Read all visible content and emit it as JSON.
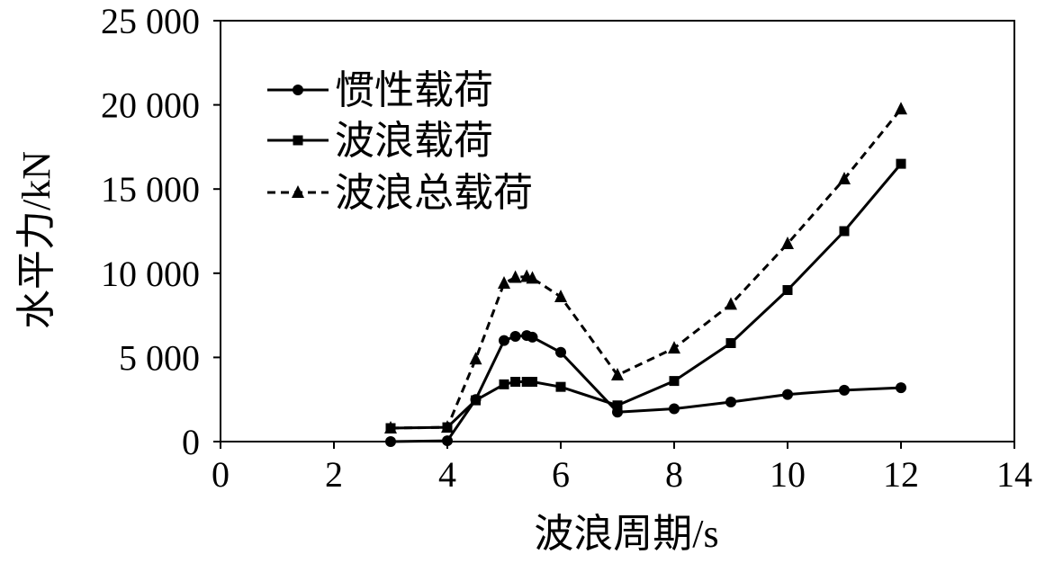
{
  "chart_data": {
    "type": "line",
    "title": "",
    "xlabel": "波浪周期/s",
    "ylabel": "水平力/kN",
    "xlim": [
      0,
      14
    ],
    "ylim": [
      0,
      25000
    ],
    "x_ticks": [
      0,
      2,
      4,
      6,
      8,
      10,
      12,
      14
    ],
    "x_tick_labels": [
      "0",
      "2",
      "4",
      "6",
      "8",
      "10",
      "12",
      "14"
    ],
    "y_ticks": [
      0,
      5000,
      10000,
      15000,
      20000,
      25000
    ],
    "y_tick_labels": [
      "0",
      "5 000",
      "10 000",
      "15 000",
      "20 000",
      "25 000"
    ],
    "grid": false,
    "legend_position": "top-left",
    "series": [
      {
        "name": "惯性载荷",
        "marker": "circle",
        "line_style": "solid",
        "color": "#000000",
        "x": [
          3,
          4,
          4.5,
          5,
          5.2,
          5.4,
          5.5,
          6,
          7,
          8,
          9,
          10,
          11,
          12
        ],
        "y": [
          0,
          50,
          2500,
          6000,
          6250,
          6300,
          6200,
          5300,
          1750,
          1950,
          2350,
          2800,
          3050,
          3200
        ]
      },
      {
        "name": "波浪载荷",
        "marker": "square",
        "line_style": "solid",
        "color": "#000000",
        "x": [
          3,
          4,
          4.5,
          5,
          5.2,
          5.4,
          5.5,
          6,
          7,
          8,
          9,
          10,
          11,
          12
        ],
        "y": [
          800,
          850,
          2450,
          3400,
          3550,
          3550,
          3550,
          3250,
          2150,
          3600,
          5850,
          9000,
          12500,
          16500
        ]
      },
      {
        "name": "波浪总载荷",
        "marker": "triangle",
        "line_style": "dashed",
        "color": "#000000",
        "x": [
          3,
          4,
          4.5,
          5,
          5.2,
          5.4,
          5.5,
          6,
          7,
          8,
          9,
          10,
          11,
          12
        ],
        "y": [
          800,
          850,
          4900,
          9400,
          9750,
          9800,
          9700,
          8600,
          3950,
          5550,
          8150,
          11750,
          15600,
          19750
        ]
      }
    ]
  }
}
